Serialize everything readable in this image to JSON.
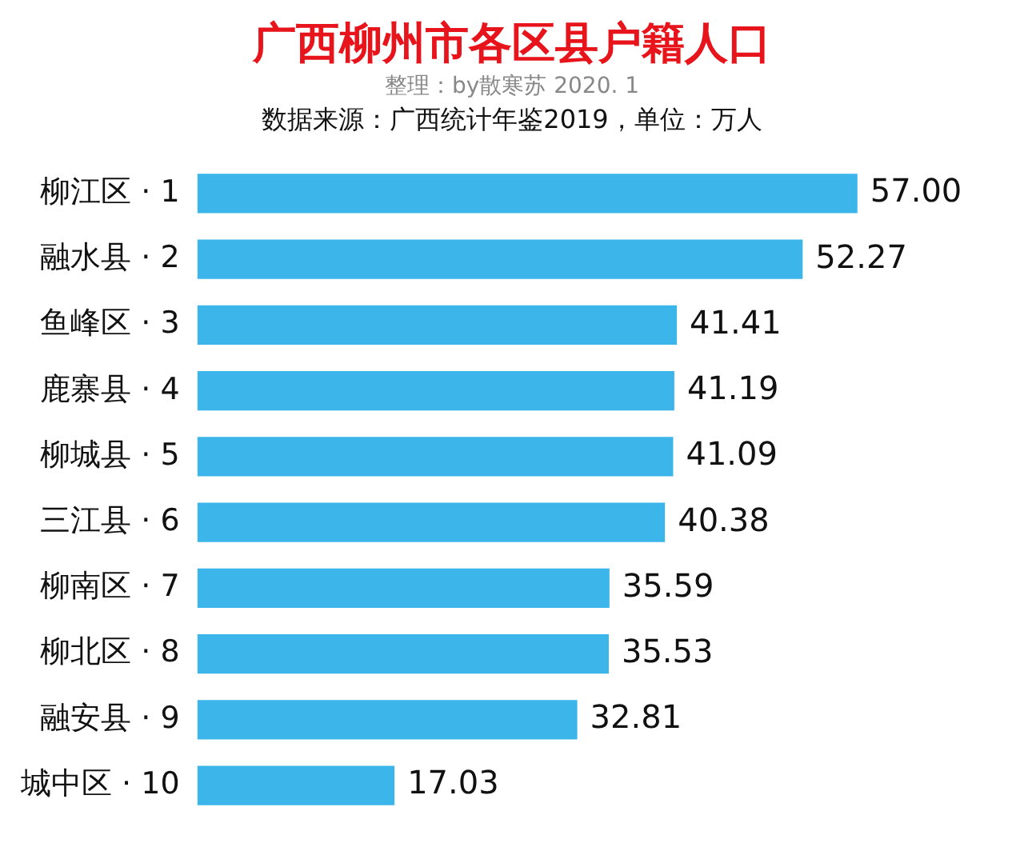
{
  "chart_data": {
    "type": "bar",
    "orientation": "horizontal",
    "title": "广西柳州市各区县户籍人口",
    "subtitle": "整理：by散寒苏 2020. 1",
    "annotations": [
      "数据来源：广西统计年鉴2019，单位：万人"
    ],
    "categories": [
      "柳江区 · 1",
      "融水县 · 2",
      "鱼峰区 · 3",
      "鹿寨县 · 4",
      "柳城县 · 5",
      "三江县 · 6",
      "柳南区 · 7",
      "柳北区 · 8",
      "融安县 · 9",
      "城中区 · 10"
    ],
    "values": [
      57.0,
      52.27,
      41.41,
      41.19,
      41.09,
      40.38,
      35.59,
      35.53,
      32.81,
      17.03
    ],
    "value_labels": [
      "57.00",
      "52.27",
      "41.41",
      "41.19",
      "41.09",
      "40.38",
      "35.59",
      "35.53",
      "32.81",
      "17.03"
    ],
    "color": "#3cb6ea",
    "tick_labels": "y"
  }
}
